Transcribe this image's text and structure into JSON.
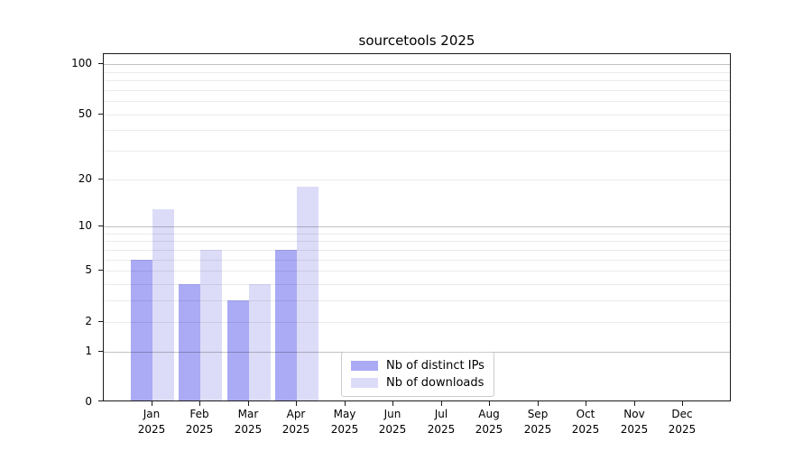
{
  "chart_data": {
    "type": "bar",
    "title": "sourcetools 2025",
    "year_label": "2025",
    "categories": [
      "Jan",
      "Feb",
      "Mar",
      "Apr",
      "May",
      "Jun",
      "Jul",
      "Aug",
      "Sep",
      "Oct",
      "Nov",
      "Dec"
    ],
    "series": [
      {
        "key": "distinct-ips",
        "name": "Nb of distinct IPs",
        "color": "#aaaaf5",
        "values": [
          6,
          4,
          3,
          7,
          0,
          0,
          0,
          0,
          0,
          0,
          0,
          0
        ]
      },
      {
        "key": "downloads",
        "name": "Nb of downloads",
        "color": "#dcdcf8",
        "values": [
          13,
          7,
          4,
          18,
          0,
          0,
          0,
          0,
          0,
          0,
          0,
          0
        ]
      }
    ],
    "y_scale": "log1p",
    "ylim": [
      0,
      114.7
    ],
    "y_ticks": [
      0,
      1,
      2,
      5,
      10,
      20,
      50,
      100
    ],
    "y_gridlines_major": [
      1,
      10,
      100
    ],
    "y_gridlines_minor": [
      2,
      3,
      4,
      5,
      6,
      7,
      8,
      9,
      20,
      30,
      40,
      50,
      60,
      70,
      80,
      90
    ],
    "grid": true,
    "legend_position": "lower center"
  }
}
